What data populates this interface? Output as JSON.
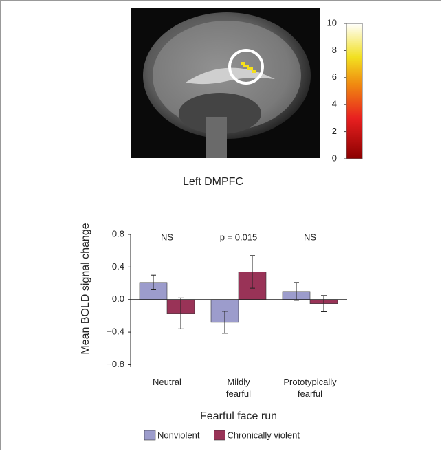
{
  "figure": {
    "region_label": "Left DMPFC",
    "colorbar_lim": [
      0,
      10
    ],
    "colorbar_ticks": [
      0,
      2,
      4,
      6,
      8,
      10
    ]
  },
  "chart_data": {
    "type": "bar",
    "y_label": "Mean BOLD signal change",
    "x_label": "Fearful face run",
    "categories": [
      "Neutral",
      "Mildly fearful",
      "Prototypically fearful"
    ],
    "annotations": [
      "NS",
      "p = 0.015",
      "NS"
    ],
    "series": [
      {
        "name": "Nonviolent",
        "color": "#9c9ccc",
        "values": [
          0.21,
          -0.28,
          0.1
        ],
        "errors": [
          0.09,
          0.135,
          0.11
        ]
      },
      {
        "name": "Chronically violent",
        "color": "#993357",
        "values": [
          -0.17,
          0.34,
          -0.05
        ],
        "errors": [
          0.19,
          0.2,
          0.1
        ]
      }
    ],
    "ylim": [
      -0.83,
      0.8
    ],
    "yticks": [
      {
        "value": -0.8,
        "label": "−0.8"
      },
      {
        "value": -0.4,
        "label": "−0.4"
      },
      {
        "value": 0,
        "label": "0.0"
      },
      0.4,
      0.8
    ],
    "legend": "bottom"
  }
}
